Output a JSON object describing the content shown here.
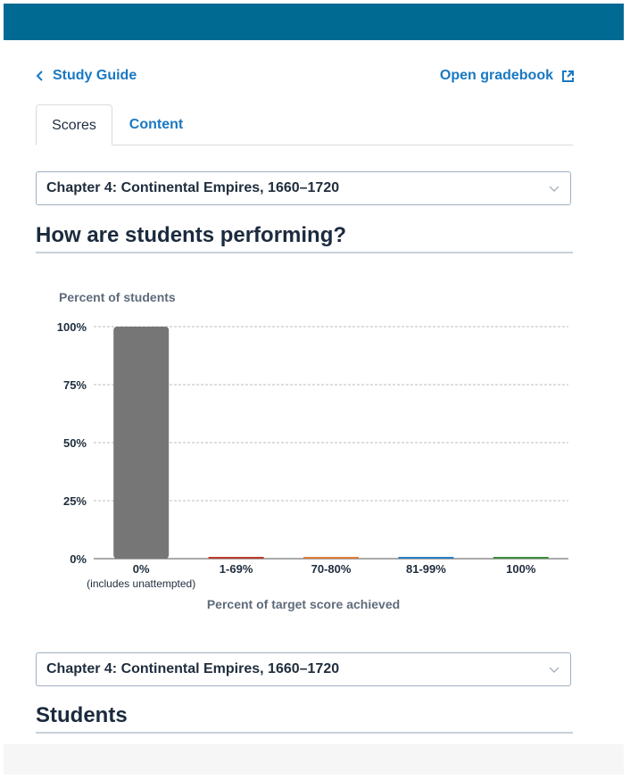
{
  "nav": {
    "back_label": "Study Guide",
    "gradebook_label": "Open gradebook"
  },
  "tabs": [
    {
      "label": "Scores",
      "active": true
    },
    {
      "label": "Content",
      "active": false
    }
  ],
  "top_select": {
    "value": "Chapter 4: Continental Empires, 1660–1720"
  },
  "performance": {
    "heading": "How are students performing?"
  },
  "chart_data": {
    "type": "bar",
    "ylabel": "Percent of students",
    "xlabel": "Percent of target score achieved",
    "categories": [
      "0%",
      "1-69%",
      "70-80%",
      "81-99%",
      "100%"
    ],
    "category_sublabels": [
      "(includes unattempted)",
      "",
      "",
      "",
      ""
    ],
    "values": [
      100,
      0,
      0,
      0,
      0
    ],
    "yticks": [
      "0%",
      "25%",
      "50%",
      "75%",
      "100%"
    ],
    "ylim": [
      0,
      100
    ],
    "grid": true,
    "colors": [
      "#767676",
      "#c0392b",
      "#e07b39",
      "#2a7fc1",
      "#3a8f3a"
    ]
  },
  "bottom_select": {
    "value": "Chapter 4: Continental Empires, 1660–1720"
  },
  "students": {
    "heading": "Students"
  }
}
